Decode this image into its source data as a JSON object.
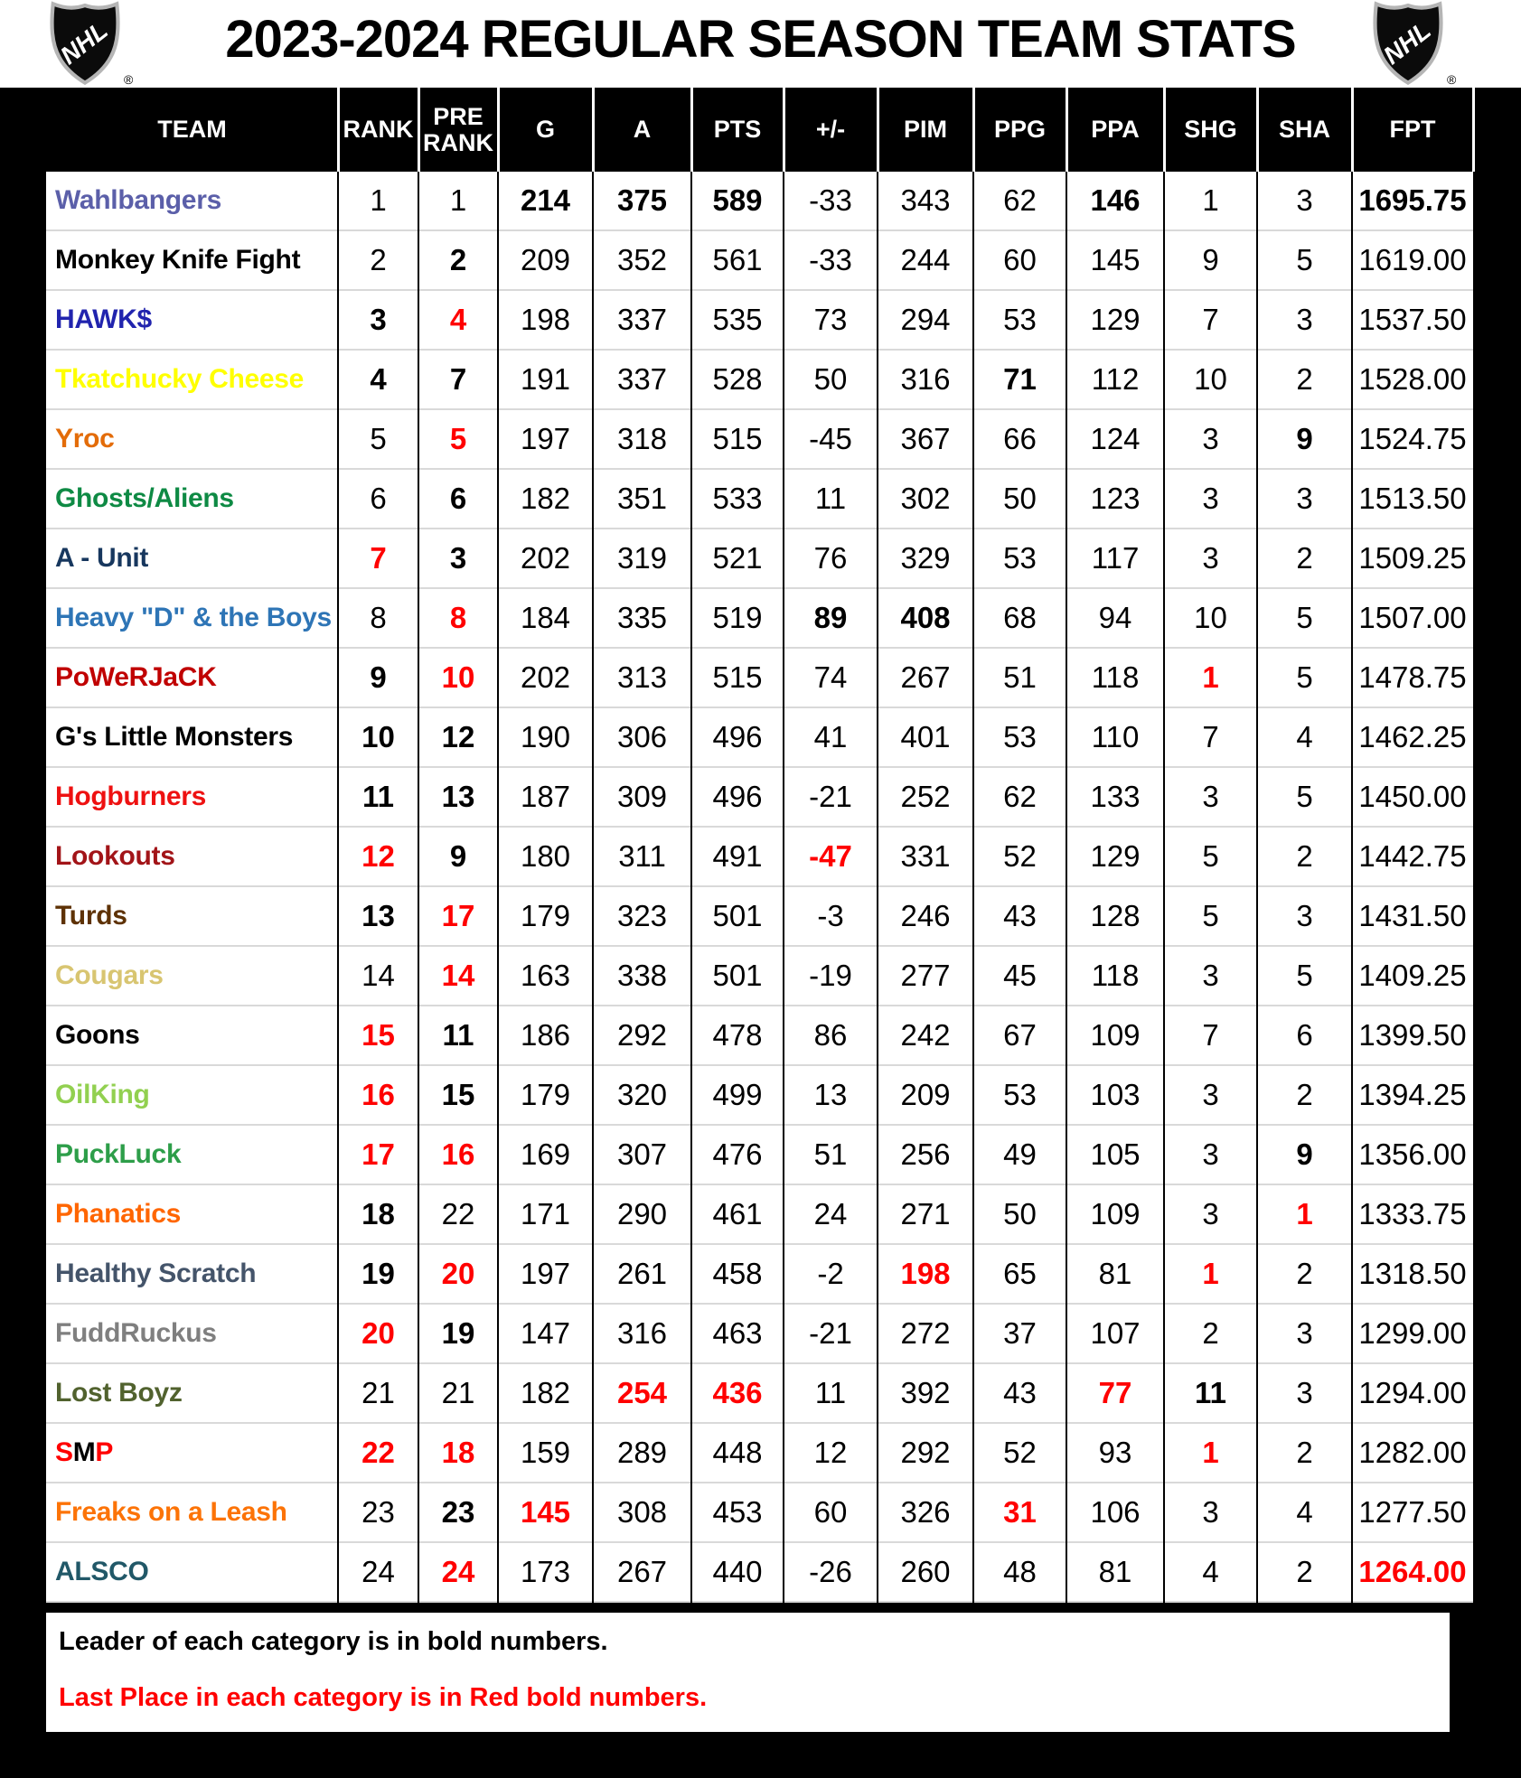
{
  "title": "2023-2024 REGULAR SEASON TEAM STATS",
  "logo_text": "NHL",
  "registered_mark": "®",
  "colors": {
    "page_bg": "#000000",
    "header_bg": "#000000",
    "header_text": "#FFFFFF",
    "row_bg": "#FFFFFF",
    "grid_vertical": "#000000",
    "grid_horizontal": "#D9D9D9",
    "leader_bold": "#000000",
    "last_place_red": "#FF0000"
  },
  "columns": [
    {
      "key": "team",
      "label": "TEAM"
    },
    {
      "key": "rank",
      "label": "RANK"
    },
    {
      "key": "pre_rank",
      "label": "PRE RANK",
      "lines": [
        "PRE",
        "RANK"
      ]
    },
    {
      "key": "g",
      "label": "G"
    },
    {
      "key": "a",
      "label": "A"
    },
    {
      "key": "pts",
      "label": "PTS"
    },
    {
      "key": "plus_minus",
      "label": "+/-"
    },
    {
      "key": "pim",
      "label": "PIM"
    },
    {
      "key": "ppg",
      "label": "PPG"
    },
    {
      "key": "ppa",
      "label": "PPA"
    },
    {
      "key": "shg",
      "label": "SHG"
    },
    {
      "key": "sha",
      "label": "SHA"
    },
    {
      "key": "fpt",
      "label": "FPT"
    }
  ],
  "teams": [
    {
      "name": "Wahlbangers",
      "color": "#5B5FA9",
      "cells": [
        "1",
        "1",
        {
          "v": "214",
          "s": "b"
        },
        {
          "v": "375",
          "s": "b"
        },
        {
          "v": "589",
          "s": "b"
        },
        "-33",
        "343",
        "62",
        {
          "v": "146",
          "s": "b"
        },
        "1",
        "3",
        {
          "v": "1695.75",
          "s": "b"
        }
      ]
    },
    {
      "name": "Monkey Knife Fight",
      "color": "#000000",
      "cells": [
        "2",
        {
          "v": "2",
          "s": "b"
        },
        "209",
        "352",
        "561",
        "-33",
        "244",
        "60",
        "145",
        "9",
        "5",
        "1619.00"
      ]
    },
    {
      "name": "HAWK$",
      "color": "#2124AE",
      "cells": [
        {
          "v": "3",
          "s": "b"
        },
        {
          "v": "4",
          "s": "r"
        },
        "198",
        "337",
        "535",
        "73",
        "294",
        "53",
        "129",
        "7",
        "3",
        "1537.50"
      ]
    },
    {
      "name": "Tkatchucky Cheese",
      "color": "#FFFF00",
      "cells": [
        {
          "v": "4",
          "s": "b"
        },
        {
          "v": "7",
          "s": "b"
        },
        "191",
        "337",
        "528",
        "50",
        "316",
        {
          "v": "71",
          "s": "b"
        },
        "112",
        "10",
        "2",
        "1528.00"
      ]
    },
    {
      "name": "Yroc",
      "color": "#E36C09",
      "cells": [
        "5",
        {
          "v": "5",
          "s": "r"
        },
        "197",
        "318",
        "515",
        "-45",
        "367",
        "66",
        "124",
        "3",
        {
          "v": "9",
          "s": "b"
        },
        "1524.75"
      ]
    },
    {
      "name": "Ghosts/Aliens",
      "color": "#0E8A44",
      "cells": [
        "6",
        {
          "v": "6",
          "s": "b"
        },
        "182",
        "351",
        "533",
        "11",
        "302",
        "50",
        "123",
        "3",
        "3",
        "1513.50"
      ]
    },
    {
      "name": "A - Unit",
      "color": "#17375E",
      "cells": [
        {
          "v": "7",
          "s": "r"
        },
        {
          "v": "3",
          "s": "b"
        },
        "202",
        "319",
        "521",
        "76",
        "329",
        "53",
        "117",
        "3",
        "2",
        "1509.25"
      ]
    },
    {
      "name": "Heavy \"D\" & the Boys",
      "color": "#2E75B6",
      "cells": [
        "8",
        {
          "v": "8",
          "s": "r"
        },
        "184",
        "335",
        "519",
        {
          "v": "89",
          "s": "b"
        },
        {
          "v": "408",
          "s": "b"
        },
        "68",
        "94",
        "10",
        "5",
        "1507.00"
      ]
    },
    {
      "name": "PoWeRJaCK",
      "color": "#C00000",
      "cells": [
        {
          "v": "9",
          "s": "b"
        },
        {
          "v": "10",
          "s": "r"
        },
        "202",
        "313",
        "515",
        "74",
        "267",
        "51",
        "118",
        {
          "v": "1",
          "s": "r"
        },
        "5",
        "1478.75"
      ]
    },
    {
      "name": "G's Little Monsters",
      "color": "#000000",
      "cells": [
        {
          "v": "10",
          "s": "b"
        },
        {
          "v": "12",
          "s": "b"
        },
        "190",
        "306",
        "496",
        "41",
        "401",
        "53",
        "110",
        "7",
        "4",
        "1462.25"
      ]
    },
    {
      "name": "Hogburners",
      "color": "#EE1111",
      "cells": [
        {
          "v": "11",
          "s": "b"
        },
        {
          "v": "13",
          "s": "b"
        },
        "187",
        "309",
        "496",
        "-21",
        "252",
        "62",
        "133",
        "3",
        "5",
        "1450.00"
      ]
    },
    {
      "name": "Lookouts",
      "color": "#A21418",
      "cells": [
        {
          "v": "12",
          "s": "r"
        },
        {
          "v": "9",
          "s": "b"
        },
        "180",
        "311",
        "491",
        {
          "v": "-47",
          "s": "r"
        },
        "331",
        "52",
        "129",
        "5",
        "2",
        "1442.75"
      ]
    },
    {
      "name": "Turds",
      "color": "#5E3205",
      "cells": [
        {
          "v": "13",
          "s": "b"
        },
        {
          "v": "17",
          "s": "r"
        },
        "179",
        "323",
        "501",
        "-3",
        "246",
        "43",
        "128",
        "5",
        "3",
        "1431.50"
      ]
    },
    {
      "name": "Cougars",
      "color": "#D8C571",
      "cells": [
        "14",
        {
          "v": "14",
          "s": "r"
        },
        "163",
        "338",
        "501",
        "-19",
        "277",
        "45",
        "118",
        "3",
        "5",
        "1409.25"
      ]
    },
    {
      "name": "Goons",
      "color": "#000000",
      "cells": [
        {
          "v": "15",
          "s": "r"
        },
        {
          "v": "11",
          "s": "b"
        },
        "186",
        "292",
        "478",
        "86",
        "242",
        "67",
        "109",
        "7",
        "6",
        "1399.50"
      ]
    },
    {
      "name": "OilKing",
      "color": "#92D050",
      "cells": [
        {
          "v": "16",
          "s": "r"
        },
        {
          "v": "15",
          "s": "b"
        },
        "179",
        "320",
        "499",
        "13",
        "209",
        "53",
        "103",
        "3",
        "2",
        "1394.25"
      ]
    },
    {
      "name": "PuckLuck",
      "color": "#2D9E49",
      "cells": [
        {
          "v": "17",
          "s": "r"
        },
        {
          "v": "16",
          "s": "r"
        },
        "169",
        "307",
        "476",
        "51",
        "256",
        "49",
        "105",
        "3",
        {
          "v": "9",
          "s": "b"
        },
        "1356.00"
      ]
    },
    {
      "name": "Phanatics",
      "color": "#FF6600",
      "cells": [
        {
          "v": "18",
          "s": "b"
        },
        "22",
        "171",
        "290",
        "461",
        "24",
        "271",
        "50",
        "109",
        "3",
        {
          "v": "1",
          "s": "r"
        },
        "1333.75"
      ]
    },
    {
      "name": "Healthy Scratch",
      "color": "#44546A",
      "cells": [
        {
          "v": "19",
          "s": "b"
        },
        {
          "v": "20",
          "s": "r"
        },
        "197",
        "261",
        "458",
        "-2",
        {
          "v": "198",
          "s": "r"
        },
        "65",
        "81",
        {
          "v": "1",
          "s": "r"
        },
        "2",
        "1318.50"
      ]
    },
    {
      "name": "FuddRuckus",
      "color": "#7F7F7F",
      "cells": [
        {
          "v": "20",
          "s": "r"
        },
        {
          "v": "19",
          "s": "b"
        },
        "147",
        "316",
        "463",
        "-21",
        "272",
        "37",
        "107",
        "2",
        "3",
        "1299.00"
      ]
    },
    {
      "name": "Lost Boyz",
      "color": "#51622E",
      "cells": [
        "21",
        "21",
        "182",
        {
          "v": "254",
          "s": "r"
        },
        {
          "v": "436",
          "s": "r"
        },
        "11",
        "392",
        "43",
        {
          "v": "77",
          "s": "r"
        },
        {
          "v": "11",
          "s": "b"
        },
        "3",
        "1294.00"
      ]
    },
    {
      "name": "SMP",
      "color": "#FF0000",
      "name_parts": [
        {
          "text": "S",
          "color": "#FF0000"
        },
        {
          "text": "M",
          "color": "#000000"
        },
        {
          "text": "P",
          "color": "#FF0000"
        }
      ],
      "cells": [
        {
          "v": "22",
          "s": "r"
        },
        {
          "v": "18",
          "s": "r"
        },
        "159",
        "289",
        "448",
        "12",
        "292",
        "52",
        "93",
        {
          "v": "1",
          "s": "r"
        },
        "2",
        "1282.00"
      ]
    },
    {
      "name": "Freaks on a Leash",
      "color": "#FC7307",
      "cells": [
        "23",
        {
          "v": "23",
          "s": "b"
        },
        {
          "v": "145",
          "s": "r"
        },
        "308",
        "453",
        "60",
        "326",
        {
          "v": "31",
          "s": "r"
        },
        "106",
        "3",
        "4",
        "1277.50"
      ]
    },
    {
      "name": "ALSCO",
      "color": "#215868",
      "cells": [
        "24",
        {
          "v": "24",
          "s": "r"
        },
        "173",
        "267",
        "440",
        "-26",
        "260",
        "48",
        "81",
        "4",
        "2",
        {
          "v": "1264.00",
          "s": "r"
        }
      ]
    }
  ],
  "footer": {
    "line1": "Leader of each category is in bold numbers.",
    "line2": "Last Place in each category is in Red bold numbers."
  }
}
